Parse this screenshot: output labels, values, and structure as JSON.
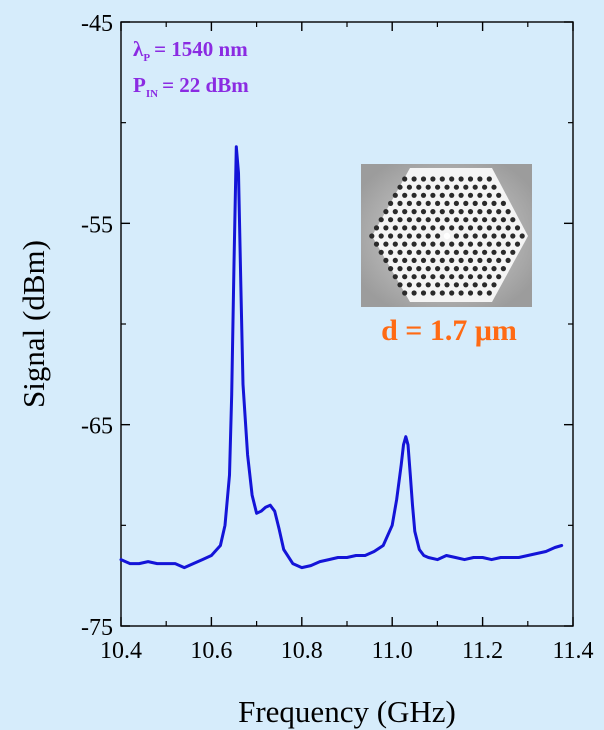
{
  "chart_data": {
    "type": "line",
    "xlabel": "Frequency (GHz)",
    "ylabel": "Signal (dBm)",
    "xlim": [
      10.4,
      11.4
    ],
    "ylim": [
      -75,
      -45
    ],
    "x_ticks": [
      "10.4",
      "10.6",
      "10.8",
      "11.0",
      "11.2",
      "11.4"
    ],
    "y_ticks": [
      "-45",
      "-55",
      "-65",
      "-75"
    ],
    "grid": false,
    "series": [
      {
        "color": "#1414d8",
        "x": [
          10.4,
          10.42,
          10.44,
          10.46,
          10.48,
          10.5,
          10.52,
          10.54,
          10.56,
          10.58,
          10.6,
          10.62,
          10.63,
          10.64,
          10.645,
          10.65,
          10.655,
          10.66,
          10.665,
          10.67,
          10.68,
          10.69,
          10.7,
          10.71,
          10.72,
          10.73,
          10.74,
          10.75,
          10.76,
          10.78,
          10.8,
          10.82,
          10.84,
          10.86,
          10.88,
          10.9,
          10.92,
          10.94,
          10.96,
          10.98,
          11.0,
          11.01,
          11.02,
          11.025,
          11.03,
          11.035,
          11.04,
          11.045,
          11.05,
          11.06,
          11.07,
          11.08,
          11.1,
          11.12,
          11.14,
          11.16,
          11.18,
          11.2,
          11.22,
          11.24,
          11.26,
          11.28,
          11.3,
          11.32,
          11.34,
          11.36,
          11.375
        ],
        "values": [
          -71.7,
          -71.9,
          -71.9,
          -71.8,
          -71.9,
          -71.9,
          -71.9,
          -72.1,
          -71.9,
          -71.7,
          -71.5,
          -71.0,
          -70.0,
          -67.5,
          -63.5,
          -57.0,
          -51.2,
          -52.5,
          -58.0,
          -63.0,
          -66.5,
          -68.5,
          -69.4,
          -69.3,
          -69.1,
          -69.0,
          -69.3,
          -70.2,
          -71.2,
          -71.9,
          -72.1,
          -72.0,
          -71.8,
          -71.7,
          -71.6,
          -71.6,
          -71.5,
          -71.5,
          -71.3,
          -71.0,
          -70.0,
          -68.7,
          -67.0,
          -66.0,
          -65.6,
          -66.0,
          -67.5,
          -69.0,
          -70.3,
          -71.2,
          -71.5,
          -71.6,
          -71.7,
          -71.5,
          -71.6,
          -71.7,
          -71.6,
          -71.6,
          -71.7,
          -71.6,
          -71.6,
          -71.6,
          -71.5,
          -71.4,
          -71.3,
          -71.1,
          -71.0
        ]
      }
    ],
    "annotations": {
      "lambda_symbol": "λ",
      "lambda_sub": "P",
      "lambda_text": "= 1540 nm",
      "power_symbol": "P",
      "power_sub": "IN",
      "power_text": "= 22 dBm",
      "inset_label": "d = 1.7 μm"
    }
  }
}
